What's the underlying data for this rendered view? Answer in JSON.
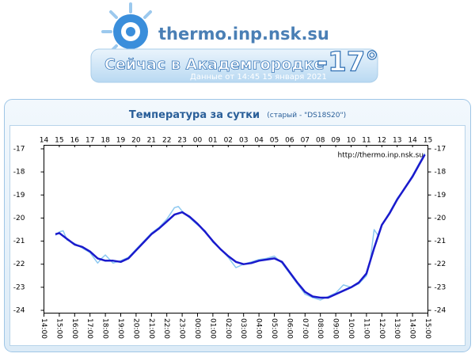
{
  "header": {
    "site": "thermo.inp.nsk.su",
    "now_label": "Сейчас в Академгородке",
    "now_value": "-17°",
    "data_time": "Данные от 14:45 15 января 2021"
  },
  "chart_data": {
    "type": "line",
    "title": "Температура за сутки",
    "subtitle": "(старый - \"DS18S20\")",
    "watermark": "http://thermo.inp.nsk.su",
    "xlim": [
      14,
      39
    ],
    "ylim": [
      -24,
      -17
    ],
    "yticks": [
      -17,
      -18,
      -19,
      -20,
      -21,
      -22,
      -23,
      -24
    ],
    "xticks": [
      {
        "value": 14,
        "label": "14:00"
      },
      {
        "value": 15,
        "label": "15:00"
      },
      {
        "value": 16,
        "label": "16:00"
      },
      {
        "value": 17,
        "label": "17:00"
      },
      {
        "value": 18,
        "label": "18:00"
      },
      {
        "value": 19,
        "label": "19:00"
      },
      {
        "value": 20,
        "label": "20:00"
      },
      {
        "value": 21,
        "label": "21:00"
      },
      {
        "value": 22,
        "label": "22:00"
      },
      {
        "value": 23,
        "label": "23:00"
      },
      {
        "value": 24,
        "label": "00:00"
      },
      {
        "value": 25,
        "label": "01:00"
      },
      {
        "value": 26,
        "label": "02:00"
      },
      {
        "value": 27,
        "label": "03:00"
      },
      {
        "value": 28,
        "label": "04:00"
      },
      {
        "value": 29,
        "label": "05:00"
      },
      {
        "value": 30,
        "label": "06:00"
      },
      {
        "value": 31,
        "label": "07:00"
      },
      {
        "value": 32,
        "label": "08:00"
      },
      {
        "value": 33,
        "label": "09:00"
      },
      {
        "value": 34,
        "label": "10:00"
      },
      {
        "value": 35,
        "label": "11:00"
      },
      {
        "value": 36,
        "label": "12:00"
      },
      {
        "value": 37,
        "label": "13:00"
      },
      {
        "value": 38,
        "label": "14:00"
      },
      {
        "value": 39,
        "label": "15:00"
      }
    ],
    "xticks_top": [
      14,
      15,
      16,
      17,
      18,
      19,
      20,
      21,
      22,
      23,
      {
        "value": 24,
        "label": "00"
      },
      {
        "value": 25,
        "label": "01"
      },
      {
        "value": 26,
        "label": "02"
      },
      {
        "value": 27,
        "label": "03"
      },
      {
        "value": 28,
        "label": "04"
      },
      {
        "value": 29,
        "label": "05"
      },
      {
        "value": 30,
        "label": "06"
      },
      {
        "value": 31,
        "label": "07"
      },
      {
        "value": 32,
        "label": "08"
      },
      {
        "value": 33,
        "label": "09"
      },
      {
        "value": 34,
        "label": "10"
      },
      {
        "value": 35,
        "label": "11"
      },
      {
        "value": 36,
        "label": "12"
      },
      {
        "value": 37,
        "label": "13"
      },
      {
        "value": 38,
        "label": "14"
      },
      {
        "value": 39,
        "label": "15"
      }
    ],
    "series": [
      {
        "color": "#8cc8f0",
        "x": [
          14.75,
          15,
          15.25,
          15.5,
          16,
          16.5,
          17,
          17.5,
          17.75,
          18,
          18.5,
          19,
          19.5,
          20,
          20.5,
          21,
          21.5,
          22,
          22.5,
          22.75,
          23,
          23.5,
          24,
          24.5,
          25,
          25.5,
          26,
          26.5,
          27,
          27.5,
          28,
          28.5,
          29,
          29.5,
          30,
          30.5,
          31,
          31.5,
          32,
          32.5,
          33,
          33.5,
          34,
          34.5,
          35,
          35.25,
          35.5,
          35.75,
          36,
          36.5,
          37,
          37.5,
          38,
          38.5,
          38.8
        ],
        "values": [
          -20.75,
          -20.6,
          -20.55,
          -20.95,
          -21.1,
          -21.3,
          -21.5,
          -21.95,
          -21.75,
          -21.6,
          -21.95,
          -21.85,
          -21.7,
          -21.35,
          -21.0,
          -20.65,
          -20.4,
          -20.05,
          -19.55,
          -19.5,
          -19.7,
          -20.0,
          -20.3,
          -20.55,
          -21.05,
          -21.35,
          -21.7,
          -22.15,
          -22.0,
          -21.9,
          -21.8,
          -21.75,
          -21.65,
          -21.95,
          -22.4,
          -22.85,
          -23.3,
          -23.45,
          -23.55,
          -23.4,
          -23.25,
          -22.9,
          -23.0,
          -22.85,
          -22.5,
          -21.8,
          -20.5,
          -20.75,
          -20.3,
          -19.75,
          -19.15,
          -18.7,
          -18.15,
          -17.55,
          -17.2
        ]
      },
      {
        "color": "#1a1acc",
        "x": [
          14.75,
          15,
          15.5,
          16,
          16.5,
          17,
          17.5,
          18,
          18.5,
          19,
          19.5,
          20,
          20.5,
          21,
          21.5,
          22,
          22.5,
          23,
          23.5,
          24,
          24.5,
          25,
          25.5,
          26,
          26.5,
          27,
          27.5,
          28,
          28.5,
          29,
          29.5,
          30,
          30.5,
          31,
          31.5,
          32,
          32.5,
          33,
          33.5,
          34,
          34.5,
          35,
          35.5,
          36,
          36.5,
          37,
          37.5,
          38,
          38.5,
          38.8
        ],
        "values": [
          -20.7,
          -20.65,
          -20.9,
          -21.15,
          -21.25,
          -21.45,
          -21.75,
          -21.85,
          -21.85,
          -21.9,
          -21.75,
          -21.4,
          -21.05,
          -20.7,
          -20.45,
          -20.15,
          -19.85,
          -19.75,
          -19.95,
          -20.25,
          -20.6,
          -21.0,
          -21.35,
          -21.65,
          -21.9,
          -22.0,
          -21.95,
          -21.85,
          -21.8,
          -21.75,
          -21.9,
          -22.35,
          -22.8,
          -23.2,
          -23.4,
          -23.45,
          -23.45,
          -23.3,
          -23.15,
          -23.0,
          -22.8,
          -22.4,
          -21.3,
          -20.3,
          -19.8,
          -19.2,
          -18.7,
          -18.2,
          -17.6,
          -17.25
        ]
      }
    ]
  }
}
